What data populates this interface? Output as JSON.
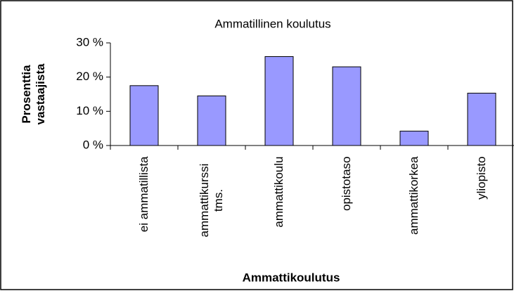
{
  "chart_data": {
    "type": "bar",
    "title": "Ammatillinen koulutus",
    "xlabel": "Ammattikoulutus",
    "ylabel": "Prosenttia vastaajista",
    "categories": [
      "ei ammatillista",
      "ammattikurssi tms.",
      "ammattikoulu",
      "opistotaso",
      "ammattikorkea",
      "yliopisto"
    ],
    "values": [
      17.5,
      14.5,
      26,
      23,
      4.2,
      15.3
    ],
    "color": "#9999ff",
    "ylim": [
      0,
      30
    ],
    "yticks": [
      {
        "value": 0,
        "label": "0 %"
      },
      {
        "value": 10,
        "label": "10 %"
      },
      {
        "value": 20,
        "label": "20 %"
      },
      {
        "value": 30,
        "label": "30 %"
      }
    ],
    "grid": false
  }
}
